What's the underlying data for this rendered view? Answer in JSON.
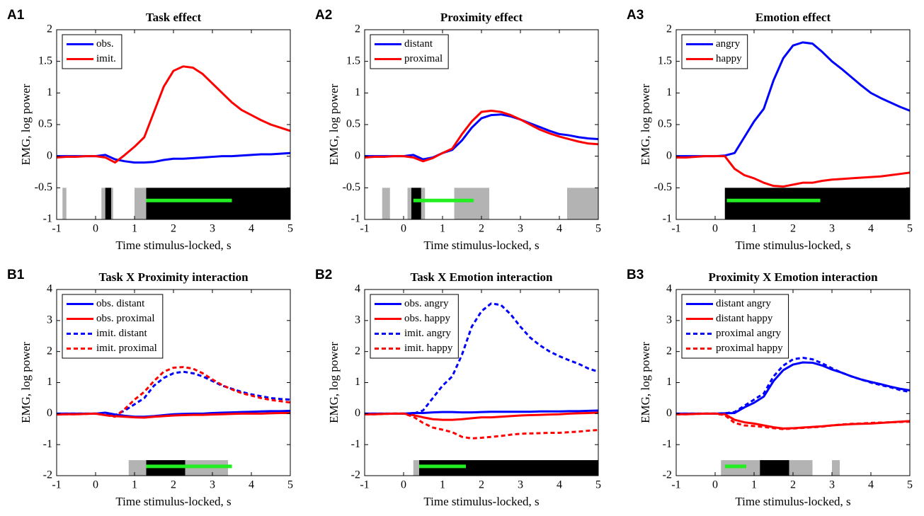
{
  "chart_data": [
    {
      "type": "line",
      "panel": "A1",
      "title": "Task effect",
      "xlabel": "Time stimulus-locked, s",
      "ylabel": "EMG, log power",
      "xlim": [
        -1,
        5
      ],
      "xticks": [
        -1,
        0,
        1,
        2,
        3,
        4,
        5
      ],
      "ylim": [
        -1,
        2
      ],
      "yticks": [
        -1,
        -0.5,
        0,
        0.5,
        1,
        1.5,
        2
      ],
      "legend": "upper left",
      "x": [
        -1,
        -0.75,
        -0.5,
        -0.25,
        0,
        0.25,
        0.5,
        0.75,
        1,
        1.25,
        1.5,
        1.75,
        2,
        2.25,
        2.5,
        2.75,
        3,
        3.25,
        3.5,
        3.75,
        4,
        4.25,
        4.5,
        4.75,
        5
      ],
      "series": [
        {
          "name": "obs.",
          "color": "#0000ff",
          "dashed": false,
          "values": [
            0,
            0,
            0,
            0,
            0,
            0.02,
            -0.05,
            -0.08,
            -0.1,
            -0.1,
            -0.09,
            -0.06,
            -0.04,
            -0.04,
            -0.03,
            -0.02,
            -0.01,
            0,
            0,
            0.01,
            0.02,
            0.03,
            0.03,
            0.04,
            0.05
          ]
        },
        {
          "name": "imit.",
          "color": "#ff0000",
          "dashed": false,
          "values": [
            -0.02,
            -0.01,
            -0.01,
            0,
            0,
            -0.02,
            -0.1,
            0.02,
            0.15,
            0.3,
            0.7,
            1.1,
            1.35,
            1.42,
            1.4,
            1.3,
            1.15,
            1.0,
            0.85,
            0.73,
            0.65,
            0.57,
            0.5,
            0.45,
            0.4
          ]
        }
      ],
      "significance": {
        "y": [
          -1,
          -0.5
        ],
        "gray": {
          "color": "#b3b3b3",
          "intervals": [
            [
              -0.85,
              -0.75
            ],
            [
              0.15,
              0.45
            ],
            [
              1.0,
              1.3
            ]
          ]
        },
        "black": {
          "color": "#000000",
          "intervals": [
            [
              0.25,
              0.4
            ],
            [
              1.3,
              5
            ]
          ]
        },
        "green": {
          "color": "#22ee22",
          "y": -0.7,
          "intervals": [
            [
              1.3,
              3.5
            ]
          ]
        }
      }
    },
    {
      "type": "line",
      "panel": "A2",
      "title": "Proximity effect",
      "xlabel": "Time stimulus-locked, s",
      "ylabel": "EMG, log power",
      "xlim": [
        -1,
        5
      ],
      "xticks": [
        -1,
        0,
        1,
        2,
        3,
        4,
        5
      ],
      "ylim": [
        -1,
        2
      ],
      "yticks": [
        -1,
        -0.5,
        0,
        0.5,
        1,
        1.5,
        2
      ],
      "legend": "upper left",
      "x": [
        -1,
        -0.75,
        -0.5,
        -0.25,
        0,
        0.25,
        0.5,
        0.75,
        1,
        1.25,
        1.5,
        1.75,
        2,
        2.25,
        2.5,
        2.75,
        3,
        3.25,
        3.5,
        3.75,
        4,
        4.25,
        4.5,
        4.75,
        5
      ],
      "series": [
        {
          "name": "distant",
          "color": "#0000ff",
          "dashed": false,
          "values": [
            0,
            0,
            0,
            0,
            0,
            0.02,
            -0.05,
            -0.02,
            0.05,
            0.1,
            0.25,
            0.45,
            0.6,
            0.65,
            0.66,
            0.63,
            0.58,
            0.52,
            0.46,
            0.4,
            0.35,
            0.33,
            0.3,
            0.28,
            0.27
          ]
        },
        {
          "name": "proximal",
          "color": "#ff0000",
          "dashed": false,
          "values": [
            -0.02,
            -0.01,
            -0.01,
            0,
            0,
            -0.02,
            -0.08,
            -0.03,
            0.05,
            0.12,
            0.35,
            0.55,
            0.7,
            0.72,
            0.7,
            0.65,
            0.58,
            0.5,
            0.42,
            0.36,
            0.31,
            0.27,
            0.23,
            0.2,
            0.19
          ]
        }
      ],
      "significance": {
        "y": [
          -1,
          -0.5
        ],
        "gray": {
          "color": "#b3b3b3",
          "intervals": [
            [
              -0.55,
              -0.35
            ],
            [
              0.1,
              0.55
            ],
            [
              1.3,
              2.2
            ],
            [
              4.2,
              5
            ]
          ]
        },
        "black": {
          "color": "#000000",
          "intervals": [
            [
              0.2,
              0.45
            ]
          ]
        },
        "green": {
          "color": "#22ee22",
          "y": -0.7,
          "intervals": [
            [
              0.25,
              1.8
            ]
          ]
        }
      }
    },
    {
      "type": "line",
      "panel": "A3",
      "title": "Emotion effect",
      "xlabel": "Time stimulus-locked, s",
      "ylabel": "EMG, log power",
      "xlim": [
        -1,
        5
      ],
      "xticks": [
        -1,
        0,
        1,
        2,
        3,
        4,
        5
      ],
      "ylim": [
        -1,
        2
      ],
      "yticks": [
        -1,
        -0.5,
        0,
        0.5,
        1,
        1.5,
        2
      ],
      "legend": "upper left",
      "x": [
        -1,
        -0.75,
        -0.5,
        -0.25,
        0,
        0.25,
        0.5,
        0.75,
        1,
        1.25,
        1.5,
        1.75,
        2,
        2.25,
        2.5,
        2.75,
        3,
        3.25,
        3.5,
        3.75,
        4,
        4.25,
        4.5,
        4.75,
        5
      ],
      "series": [
        {
          "name": "angry",
          "color": "#0000ff",
          "dashed": false,
          "values": [
            0,
            0,
            0,
            0,
            0,
            0.01,
            0.05,
            0.3,
            0.55,
            0.75,
            1.2,
            1.55,
            1.75,
            1.8,
            1.78,
            1.65,
            1.5,
            1.38,
            1.25,
            1.12,
            1.0,
            0.92,
            0.85,
            0.78,
            0.72
          ]
        },
        {
          "name": "happy",
          "color": "#ff0000",
          "dashed": false,
          "values": [
            -0.02,
            -0.02,
            -0.01,
            0,
            0,
            0,
            -0.2,
            -0.3,
            -0.35,
            -0.42,
            -0.47,
            -0.48,
            -0.45,
            -0.42,
            -0.42,
            -0.39,
            -0.37,
            -0.36,
            -0.35,
            -0.34,
            -0.33,
            -0.32,
            -0.3,
            -0.28,
            -0.26
          ]
        }
      ],
      "significance": {
        "y": [
          -1,
          -0.5
        ],
        "gray": {
          "color": "#b3b3b3",
          "intervals": []
        },
        "black": {
          "color": "#000000",
          "intervals": [
            [
              0.25,
              5
            ]
          ]
        },
        "green": {
          "color": "#22ee22",
          "y": -0.7,
          "intervals": [
            [
              0.3,
              2.7
            ]
          ]
        }
      }
    },
    {
      "type": "line",
      "panel": "B1",
      "title": "Task X Proximity interaction",
      "xlabel": "Time stimulus-locked, s",
      "ylabel": "EMG, log power",
      "xlim": [
        -1,
        5
      ],
      "xticks": [
        -1,
        0,
        1,
        2,
        3,
        4,
        5
      ],
      "ylim": [
        -2,
        4
      ],
      "yticks": [
        -2,
        -1,
        0,
        1,
        2,
        3,
        4
      ],
      "legend": "upper left",
      "x": [
        -1,
        -0.75,
        -0.5,
        -0.25,
        0,
        0.25,
        0.5,
        0.75,
        1,
        1.25,
        1.5,
        1.75,
        2,
        2.25,
        2.5,
        2.75,
        3,
        3.25,
        3.5,
        3.75,
        4,
        4.25,
        4.5,
        4.75,
        5
      ],
      "series": [
        {
          "name": "obs. distant",
          "color": "#0000ff",
          "dashed": false,
          "values": [
            0,
            0,
            0,
            0,
            0,
            0.03,
            -0.03,
            -0.07,
            -0.1,
            -0.1,
            -0.08,
            -0.05,
            -0.02,
            -0.01,
            0,
            0,
            0.02,
            0.03,
            0.04,
            0.05,
            0.06,
            0.07,
            0.08,
            0.08,
            0.09
          ]
        },
        {
          "name": "obs. proximal",
          "color": "#ff0000",
          "dashed": false,
          "values": [
            -0.03,
            -0.02,
            -0.02,
            -0.01,
            0,
            -0.05,
            -0.08,
            -0.1,
            -0.12,
            -0.13,
            -0.1,
            -0.08,
            -0.06,
            -0.05,
            -0.04,
            -0.04,
            -0.03,
            -0.02,
            -0.01,
            0,
            0,
            0,
            0.01,
            0.02,
            0.02
          ]
        },
        {
          "name": "imit. distant",
          "color": "#0000ff",
          "dashed": true,
          "values": [
            0,
            0,
            0,
            0,
            0,
            0,
            -0.05,
            0.1,
            0.3,
            0.5,
            0.9,
            1.15,
            1.3,
            1.35,
            1.3,
            1.2,
            1.05,
            0.9,
            0.8,
            0.7,
            0.62,
            0.56,
            0.5,
            0.47,
            0.45
          ]
        },
        {
          "name": "imit. proximal",
          "color": "#ff0000",
          "dashed": true,
          "values": [
            -0.03,
            -0.02,
            -0.02,
            -0.01,
            0,
            -0.05,
            -0.1,
            0.15,
            0.45,
            0.7,
            1.05,
            1.35,
            1.48,
            1.5,
            1.45,
            1.3,
            1.1,
            0.92,
            0.78,
            0.66,
            0.58,
            0.5,
            0.44,
            0.4,
            0.36
          ]
        }
      ],
      "significance": {
        "y": [
          -2,
          -1.5
        ],
        "gray": {
          "color": "#b3b3b3",
          "intervals": [
            [
              0.85,
              1.3
            ],
            [
              2.3,
              3.4
            ]
          ]
        },
        "black": {
          "color": "#000000",
          "intervals": [
            [
              1.3,
              2.3
            ]
          ]
        },
        "green": {
          "color": "#22ee22",
          "y": -1.7,
          "intervals": [
            [
              1.3,
              3.5
            ]
          ]
        }
      }
    },
    {
      "type": "line",
      "panel": "B2",
      "title": "Task X Emotion interaction",
      "xlabel": "Time stimulus-locked, s",
      "ylabel": "EMG, log power",
      "xlim": [
        -1,
        5
      ],
      "xticks": [
        -1,
        0,
        1,
        2,
        3,
        4,
        5
      ],
      "ylim": [
        -2,
        4
      ],
      "yticks": [
        -2,
        -1,
        0,
        1,
        2,
        3,
        4
      ],
      "legend": "upper left",
      "x": [
        -1,
        -0.75,
        -0.5,
        -0.25,
        0,
        0.25,
        0.5,
        0.75,
        1,
        1.25,
        1.5,
        1.75,
        2,
        2.25,
        2.5,
        2.75,
        3,
        3.25,
        3.5,
        3.75,
        4,
        4.25,
        4.5,
        4.75,
        5
      ],
      "series": [
        {
          "name": "obs. angry",
          "color": "#0000ff",
          "dashed": false,
          "values": [
            0,
            0,
            0,
            0,
            0,
            0.02,
            0.02,
            0.04,
            0.05,
            0.05,
            0.04,
            0.04,
            0.05,
            0.06,
            0.06,
            0.06,
            0.06,
            0.06,
            0.07,
            0.07,
            0.07,
            0.08,
            0.08,
            0.09,
            0.1
          ]
        },
        {
          "name": "obs. happy",
          "color": "#ff0000",
          "dashed": false,
          "values": [
            -0.02,
            -0.02,
            -0.01,
            0,
            0,
            -0.05,
            -0.12,
            -0.18,
            -0.2,
            -0.2,
            -0.18,
            -0.15,
            -0.12,
            -0.12,
            -0.1,
            -0.08,
            -0.06,
            -0.05,
            -0.04,
            -0.03,
            -0.02,
            0,
            0.01,
            0.02,
            0.03
          ]
        },
        {
          "name": "imit. angry",
          "color": "#0000ff",
          "dashed": true,
          "values": [
            0,
            0,
            0,
            0,
            0,
            0,
            0.1,
            0.5,
            0.9,
            1.2,
            1.9,
            2.8,
            3.3,
            3.55,
            3.5,
            3.2,
            2.8,
            2.45,
            2.2,
            2.0,
            1.85,
            1.72,
            1.6,
            1.45,
            1.35
          ]
        },
        {
          "name": "imit. happy",
          "color": "#ff0000",
          "dashed": true,
          "values": [
            -0.02,
            -0.02,
            -0.01,
            0,
            0,
            -0.1,
            -0.3,
            -0.45,
            -0.52,
            -0.6,
            -0.75,
            -0.8,
            -0.78,
            -0.75,
            -0.72,
            -0.68,
            -0.65,
            -0.64,
            -0.63,
            -0.62,
            -0.62,
            -0.6,
            -0.58,
            -0.55,
            -0.53
          ]
        }
      ],
      "significance": {
        "y": [
          -2,
          -1.5
        ],
        "gray": {
          "color": "#b3b3b3",
          "intervals": [
            [
              0.25,
              0.4
            ]
          ]
        },
        "black": {
          "color": "#000000",
          "intervals": [
            [
              0.4,
              5
            ]
          ]
        },
        "green": {
          "color": "#22ee22",
          "y": -1.7,
          "intervals": [
            [
              0.4,
              1.6
            ]
          ]
        }
      }
    },
    {
      "type": "line",
      "panel": "B3",
      "title": "Proximity X Emotion interaction",
      "xlabel": "Time stimulus-locked, s",
      "ylabel": "EMG, log power",
      "xlim": [
        -1,
        5
      ],
      "xticks": [
        -1,
        0,
        1,
        2,
        3,
        4,
        5
      ],
      "ylim": [
        -2,
        4
      ],
      "yticks": [
        -2,
        -1,
        0,
        1,
        2,
        3,
        4
      ],
      "legend": "upper left",
      "x": [
        -1,
        -0.75,
        -0.5,
        -0.25,
        0,
        0.25,
        0.5,
        0.75,
        1,
        1.25,
        1.5,
        1.75,
        2,
        2.25,
        2.5,
        2.75,
        3,
        3.25,
        3.5,
        3.75,
        4,
        4.25,
        4.5,
        4.75,
        5
      ],
      "series": [
        {
          "name": "distant angry",
          "color": "#0000ff",
          "dashed": false,
          "values": [
            0,
            0,
            0,
            0,
            0,
            0.01,
            0.02,
            0.2,
            0.35,
            0.55,
            1.05,
            1.4,
            1.58,
            1.65,
            1.64,
            1.55,
            1.42,
            1.32,
            1.2,
            1.1,
            1.02,
            0.95,
            0.87,
            0.8,
            0.75
          ]
        },
        {
          "name": "distant happy",
          "color": "#ff0000",
          "dashed": false,
          "values": [
            -0.02,
            -0.02,
            -0.01,
            0,
            0,
            -0.02,
            -0.2,
            -0.28,
            -0.32,
            -0.38,
            -0.44,
            -0.48,
            -0.47,
            -0.45,
            -0.43,
            -0.41,
            -0.38,
            -0.36,
            -0.34,
            -0.33,
            -0.32,
            -0.3,
            -0.28,
            -0.26,
            -0.24
          ]
        },
        {
          "name": "proximal angry",
          "color": "#0000ff",
          "dashed": true,
          "values": [
            0,
            0,
            0,
            0,
            0,
            0.01,
            0.05,
            0.25,
            0.45,
            0.65,
            1.2,
            1.55,
            1.75,
            1.8,
            1.75,
            1.62,
            1.46,
            1.32,
            1.2,
            1.1,
            1.0,
            0.92,
            0.85,
            0.76,
            0.7
          ]
        },
        {
          "name": "proximal happy",
          "color": "#ff0000",
          "dashed": true,
          "values": [
            -0.02,
            -0.02,
            -0.01,
            0,
            0,
            -0.05,
            -0.3,
            -0.38,
            -0.4,
            -0.43,
            -0.47,
            -0.5,
            -0.48,
            -0.46,
            -0.44,
            -0.42,
            -0.38,
            -0.35,
            -0.33,
            -0.32,
            -0.3,
            -0.29,
            -0.28,
            -0.27,
            -0.26
          ]
        }
      ],
      "significance": {
        "y": [
          -2,
          -1.5
        ],
        "gray": {
          "color": "#b3b3b3",
          "intervals": [
            [
              0.15,
              1.15
            ],
            [
              1.9,
              2.5
            ],
            [
              3.0,
              3.2
            ]
          ]
        },
        "black": {
          "color": "#000000",
          "intervals": [
            [
              1.15,
              1.9
            ]
          ]
        },
        "green": {
          "color": "#22ee22",
          "y": -1.7,
          "intervals": [
            [
              0.25,
              0.8
            ]
          ]
        }
      }
    }
  ]
}
